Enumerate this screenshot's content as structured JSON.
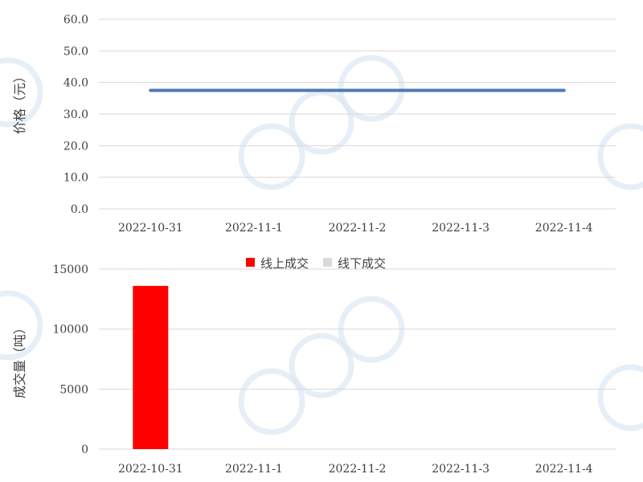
{
  "chart_data": [
    {
      "type": "line",
      "title": "",
      "xlabel": "",
      "ylabel": "价格（元）",
      "categories": [
        "2022-10-31",
        "2022-11-1",
        "2022-11-2",
        "2022-11-3",
        "2022-11-4"
      ],
      "y_ticks": [
        "0.0",
        "10.0",
        "20.0",
        "30.0",
        "40.0",
        "50.0",
        "60.0"
      ],
      "ylim": [
        0,
        60
      ],
      "grid": true,
      "series": [
        {
          "name": "",
          "color": "#4e7bb0",
          "values": [
            37.5,
            37.5,
            37.5,
            37.5,
            37.5
          ]
        }
      ]
    },
    {
      "type": "bar",
      "title": "",
      "xlabel": "",
      "ylabel": "成交量（吨）",
      "categories": [
        "2022-10-31",
        "2022-11-1",
        "2022-11-2",
        "2022-11-3",
        "2022-11-4"
      ],
      "y_ticks": [
        "0",
        "5000",
        "10000",
        "15000"
      ],
      "ylim": [
        0,
        15000
      ],
      "grid": true,
      "legend_position": "top",
      "series": [
        {
          "name": "线上成交",
          "color": "#ff0000",
          "values": [
            13600,
            0,
            0,
            0,
            0
          ]
        },
        {
          "name": "线下成交",
          "color": "#d9d9d9",
          "values": [
            0,
            0,
            0,
            0,
            0
          ]
        }
      ]
    }
  ]
}
